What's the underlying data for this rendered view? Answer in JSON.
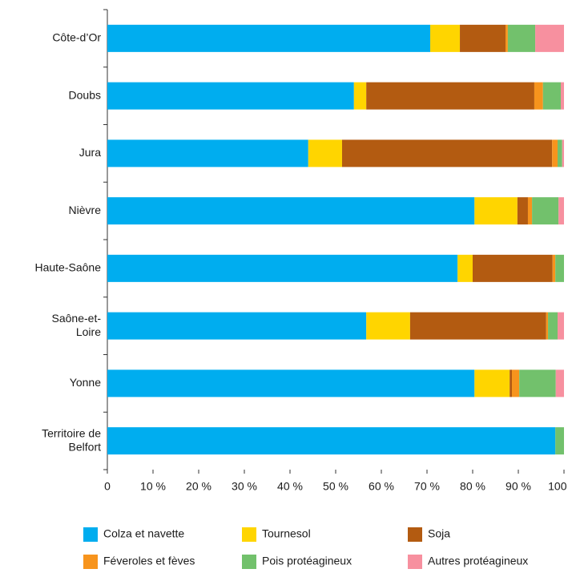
{
  "chart_data": {
    "type": "stacked-bar-horizontal",
    "categories": [
      "Côte-d’Or",
      "Doubs",
      "Jura",
      "Nièvre",
      "Haute-Saône",
      "Saône-et-Loire",
      "Yonne",
      "Territoire de Belfort"
    ],
    "series": [
      {
        "name": "Colza et navette",
        "color": "#00adef",
        "values": [
          70.7,
          54.0,
          44.0,
          80.4,
          76.7,
          56.7,
          80.4,
          98.1
        ]
      },
      {
        "name": "Tournesol",
        "color": "#ffd500",
        "values": [
          6.5,
          2.7,
          7.4,
          9.4,
          3.3,
          9.6,
          7.7,
          0
        ]
      },
      {
        "name": "Soja",
        "color": "#b35b11",
        "values": [
          10.0,
          36.8,
          46.0,
          2.3,
          17.5,
          29.8,
          0.5,
          0
        ]
      },
      {
        "name": "Féveroles et fèves",
        "color": "#f7941d",
        "values": [
          0.5,
          1.9,
          1.2,
          0.9,
          0.6,
          0.4,
          1.6,
          0
        ]
      },
      {
        "name": "Pois protéagineux",
        "color": "#72c16c",
        "values": [
          6.0,
          3.9,
          1.0,
          5.8,
          1.9,
          2.1,
          8.0,
          1.9
        ]
      },
      {
        "name": "Autres protéagineux",
        "color": "#f7909f",
        "values": [
          6.3,
          0.7,
          0.4,
          1.2,
          0,
          1.4,
          1.8,
          0
        ]
      }
    ],
    "xlim": [
      0,
      100
    ],
    "xticks": [
      0,
      {
        "value": 10,
        "label": "10 %"
      },
      {
        "value": 20,
        "label": "20 %"
      },
      {
        "value": 30,
        "label": "30 %"
      },
      {
        "value": 40,
        "label": "40 %"
      },
      {
        "value": 50,
        "label": "50 %"
      },
      {
        "value": 60,
        "label": "60 %"
      },
      {
        "value": 70,
        "label": "70 %"
      },
      {
        "value": 80,
        "label": "80 %"
      },
      {
        "value": 90,
        "label": "90 %"
      },
      {
        "value": 100,
        "label": "100 %"
      }
    ]
  }
}
